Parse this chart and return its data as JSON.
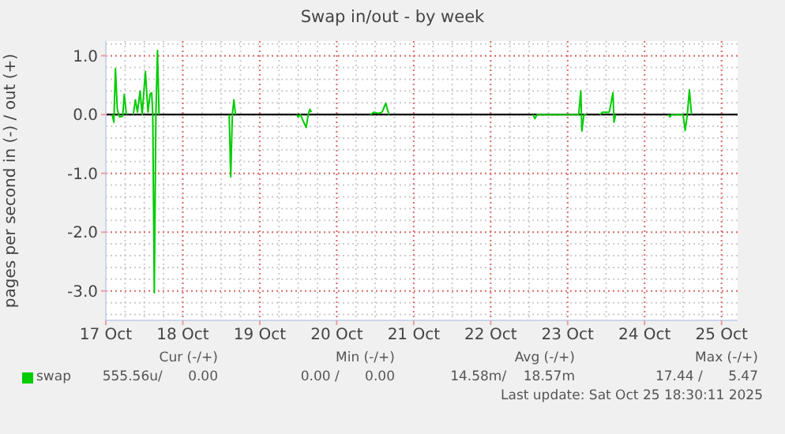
{
  "chart_data": {
    "type": "line",
    "title": "Swap in/out - by week",
    "ylabel": "pages per second in (-) / out (+)",
    "x": [
      "2025-10-17T02:00",
      "2025-10-17T02:30",
      "2025-10-17T03:00",
      "2025-10-17T03:35",
      "2025-10-17T04:16",
      "2025-10-17T05:15",
      "2025-10-17T05:45",
      "2025-10-17T06:25",
      "2025-10-17T07:30",
      "2025-10-17T08:33",
      "2025-10-17T09:13",
      "2025-10-17T09:52",
      "2025-10-17T10:41",
      "2025-10-17T11:20",
      "2025-10-17T12:20",
      "2025-10-17T13:09",
      "2025-10-17T13:48",
      "2025-10-17T14:18",
      "2025-10-17T14:38",
      "2025-10-17T15:07",
      "2025-10-17T15:37",
      "2025-10-17T16:06",
      "2025-10-17T16:36",
      "2025-10-18T00:00",
      "2025-10-18T14:28",
      "2025-10-18T14:57",
      "2025-10-18T15:27",
      "2025-10-18T15:56",
      "2025-10-18T16:26",
      "2025-10-19T00:00",
      "2025-10-19T11:30",
      "2025-10-19T12:00",
      "2025-10-19T12:39",
      "2025-10-19T14:28",
      "2025-10-19T15:07",
      "2025-10-19T15:37",
      "2025-10-19T16:06",
      "2025-10-20T00:00",
      "2025-10-20T10:31",
      "2025-10-20T11:40",
      "2025-10-20T12:59",
      "2025-10-20T14:08",
      "2025-10-20T15:17",
      "2025-10-20T16:16",
      "2025-10-21T00:00",
      "2025-10-22T13:09",
      "2025-10-22T13:48",
      "2025-10-22T14:28",
      "2025-10-23T03:27",
      "2025-10-23T04:06",
      "2025-10-23T04:26",
      "2025-10-23T05:05",
      "2025-10-23T05:55",
      "2025-10-23T08:00",
      "2025-10-23T10:02",
      "2025-10-23T10:51",
      "2025-10-23T12:59",
      "2025-10-23T14:08",
      "2025-10-23T14:28",
      "2025-10-23T14:57",
      "2025-10-24T00:00",
      "2025-10-24T07:24",
      "2025-10-24T07:54",
      "2025-10-24T08:23",
      "2025-10-24T12:00",
      "2025-10-24T12:39",
      "2025-10-24T13:19",
      "2025-10-24T13:58",
      "2025-10-24T14:38"
    ],
    "series": [
      {
        "name": "swap",
        "color": "#00cc00",
        "values": [
          0,
          -0.13,
          0.78,
          0.09,
          -0.04,
          -0.03,
          0.34,
          0,
          null,
          0,
          0.25,
          0.04,
          0.4,
          0,
          0.73,
          0.04,
          0.35,
          0.37,
          0,
          -3.03,
          0,
          1.09,
          0,
          null,
          0,
          -1.06,
          0,
          0.25,
          0,
          null,
          0,
          -0.04,
          0,
          -0.22,
          0,
          0.09,
          0.04,
          null,
          0,
          0.04,
          0.02,
          0.04,
          0.19,
          0,
          null,
          0,
          -0.07,
          0,
          0,
          0.4,
          -0.28,
          0,
          0,
          null,
          0,
          0.04,
          0.04,
          0.37,
          -0.13,
          0,
          null,
          0,
          -0.04,
          0,
          0,
          -0.27,
          0,
          0.42,
          0
        ]
      }
    ],
    "xlim": [
      "2025-10-17T00:00",
      "2025-10-25T05:00"
    ],
    "xticks": [
      {
        "value": "2025-10-17",
        "label": "17 Oct"
      },
      {
        "value": "2025-10-18",
        "label": "18 Oct"
      },
      {
        "value": "2025-10-19",
        "label": "19 Oct"
      },
      {
        "value": "2025-10-20",
        "label": "20 Oct"
      },
      {
        "value": "2025-10-21",
        "label": "21 Oct"
      },
      {
        "value": "2025-10-22",
        "label": "22 Oct"
      },
      {
        "value": "2025-10-23",
        "label": "23 Oct"
      },
      {
        "value": "2025-10-24",
        "label": "24 Oct"
      },
      {
        "value": "2025-10-25",
        "label": "25 Oct"
      }
    ],
    "ylim": [
      -3.5,
      1.25
    ],
    "yticks": [
      {
        "value": -3,
        "label": "-3.0"
      },
      {
        "value": -2,
        "label": "-2.0"
      },
      {
        "value": -1,
        "label": "-1.0"
      },
      {
        "value": 0,
        "label": "0.0"
      },
      {
        "value": 1,
        "label": "1.0"
      }
    ],
    "ref_lines": [
      {
        "axis": "y",
        "value": 0,
        "color": "#000000"
      }
    ],
    "grid": true,
    "legend": "bottom left",
    "marker": "none",
    "line_style": "solid",
    "annotations": [
      "Cur (-/+)",
      "Min (-/+)",
      "Avg (-/+)",
      "Max (-/+)",
      "555.56u/      0.00",
      "0.00 /      0.00",
      "14.58m/    18.57m",
      "17.44 /      5.47",
      "Last update: Sat Oct 25 18:30:11 2025"
    ]
  }
}
